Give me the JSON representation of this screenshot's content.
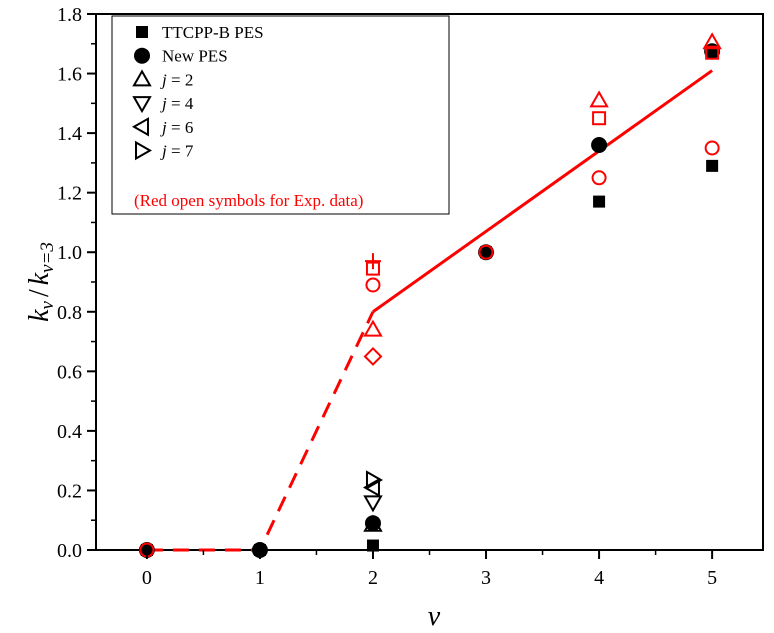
{
  "chart_data": {
    "type": "scatter",
    "xlabel": "v",
    "ylabel": {
      "k": "k",
      "sub_num": "v",
      "slash": "/",
      "sub_den": "v=3"
    },
    "xlim": [
      -0.45,
      5.45
    ],
    "ylim": [
      0,
      1.8
    ],
    "x_ticks": [
      0,
      1,
      2,
      3,
      4,
      5
    ],
    "x_tick_labels": [
      "0",
      "1",
      "2",
      "3",
      "4",
      "5"
    ],
    "y_ticks": [
      0.0,
      0.2,
      0.4,
      0.6,
      0.8,
      1.0,
      1.2,
      1.4,
      1.6,
      1.8
    ],
    "y_tick_labels": [
      "0.0",
      "0.2",
      "0.4",
      "0.6",
      "0.8",
      "1.0",
      "1.2",
      "1.4",
      "1.6",
      "1.8"
    ],
    "grid": false,
    "legend_position": "top-left",
    "legend": [
      {
        "marker": "filled-square",
        "prefix": "",
        "label": "TTCPP-B PES"
      },
      {
        "marker": "filled-circle",
        "prefix": "",
        "label": "New PES"
      },
      {
        "marker": "open-triangle-up",
        "prefix": "j",
        "label": " = 2"
      },
      {
        "marker": "open-triangle-down",
        "prefix": "j",
        "label": " = 4"
      },
      {
        "marker": "open-triangle-left",
        "prefix": "j",
        "label": " = 6"
      },
      {
        "marker": "open-triangle-right",
        "prefix": "j",
        "label": " = 7"
      }
    ],
    "legend_note": "(Red open symbols for Exp. data)",
    "series": [
      {
        "marker": "filled-square",
        "color": "#000000",
        "x": [
          0,
          1,
          2,
          3,
          4,
          5
        ],
        "y": [
          0.0,
          0.0,
          0.015,
          1.0,
          1.17,
          1.29
        ]
      },
      {
        "marker": "filled-circle",
        "color": "#000000",
        "x": [
          0,
          1,
          2,
          3,
          4,
          5
        ],
        "y": [
          0.0,
          0.0,
          0.09,
          1.0,
          1.36,
          1.675
        ]
      },
      {
        "marker": "open-triangle-up",
        "color": "#000000",
        "x": [
          2
        ],
        "y": [
          0.085
        ]
      },
      {
        "marker": "open-triangle-down",
        "color": "#000000",
        "x": [
          2
        ],
        "y": [
          0.16
        ]
      },
      {
        "marker": "open-triangle-left",
        "color": "#000000",
        "x": [
          2
        ],
        "y": [
          0.21
        ]
      },
      {
        "marker": "open-triangle-right",
        "color": "#000000",
        "x": [
          2
        ],
        "y": [
          0.235
        ]
      },
      {
        "marker": "open-circle",
        "color": "#ff0000",
        "x": [
          0,
          2,
          3,
          4,
          5
        ],
        "y": [
          0.0,
          0.89,
          1.0,
          1.25,
          1.35
        ]
      },
      {
        "marker": "open-triangle-up",
        "color": "#ff0000",
        "x": [
          2,
          4,
          5
        ],
        "y": [
          0.74,
          1.51,
          1.705
        ]
      },
      {
        "marker": "open-square",
        "color": "#ff0000",
        "x": [
          2,
          4,
          5
        ],
        "y": [
          0.945,
          1.45,
          1.67
        ]
      },
      {
        "marker": "open-diamond",
        "color": "#ff0000",
        "x": [
          2
        ],
        "y": [
          0.65
        ]
      },
      {
        "marker": "plus",
        "color": "#ff0000",
        "x": [
          2
        ],
        "y": [
          0.97
        ]
      }
    ],
    "fit_lines": [
      {
        "style": "dashed",
        "color": "#ff0000",
        "x": [
          0,
          1,
          2
        ],
        "y": [
          0.0,
          0.0,
          0.8
        ]
      },
      {
        "style": "solid",
        "color": "#ff0000",
        "x": [
          2,
          5
        ],
        "y": [
          0.8,
          1.61
        ]
      }
    ]
  }
}
